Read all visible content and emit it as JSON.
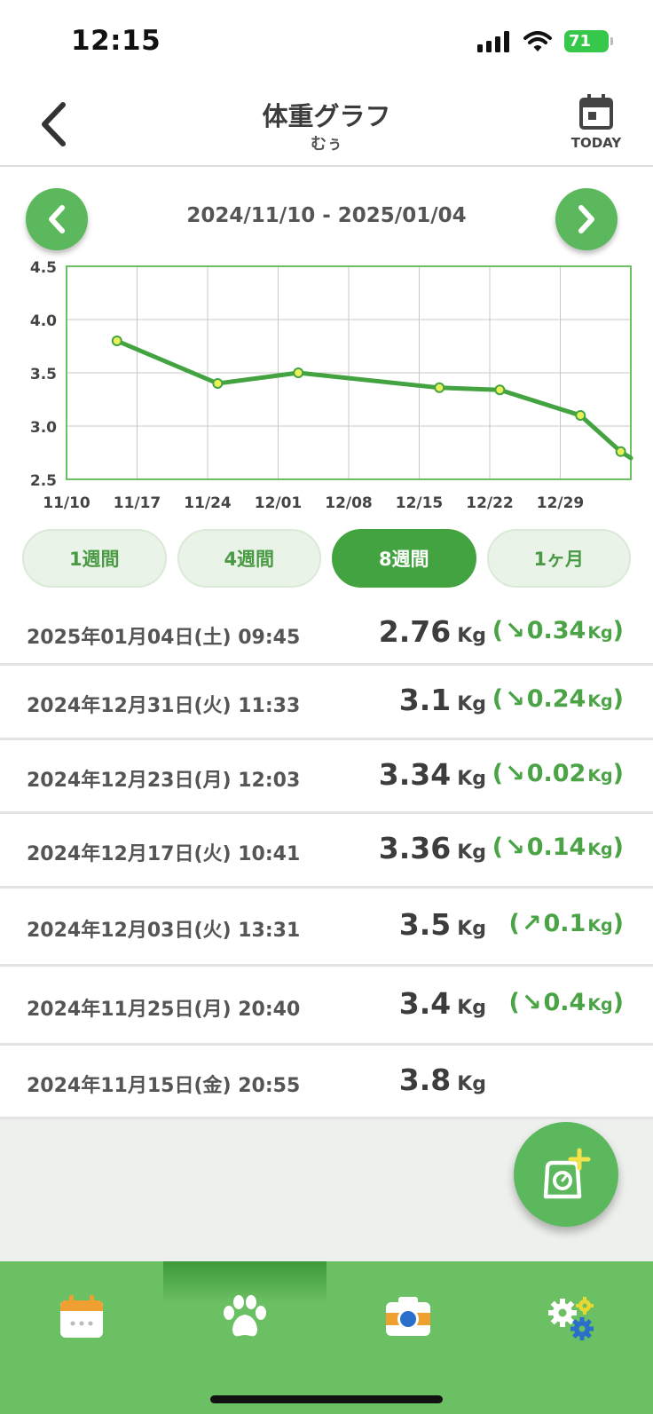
{
  "status_bar": {
    "time": "12:15",
    "battery": "71"
  },
  "header": {
    "title": "体重グラフ",
    "subtitle": "むぅ",
    "today_label": "TODAY"
  },
  "range": {
    "label": "2024/11/10 - 2025/01/04"
  },
  "chart_data": {
    "type": "line",
    "x": [
      "2024-11-15",
      "2024-11-25",
      "2024-12-03",
      "2024-12-17",
      "2024-12-23",
      "2024-12-31",
      "2025-01-04",
      "2025-01-05"
    ],
    "y": [
      3.8,
      3.4,
      3.5,
      3.36,
      3.34,
      3.1,
      2.76,
      2.7
    ],
    "xticks": [
      "11/10",
      "11/17",
      "11/24",
      "12/01",
      "12/08",
      "12/15",
      "12/22",
      "12/29"
    ],
    "yticks": [
      "4.5",
      "4.0",
      "3.5",
      "3.0",
      "2.5"
    ],
    "xlim": [
      "2024-11-10",
      "2025-01-05"
    ],
    "ylim": [
      2.5,
      4.5
    ],
    "grid": true,
    "line_color": "#43a340",
    "marker_fill": "#e8f05a"
  },
  "period_tabs": [
    {
      "label": "1週間",
      "active": false
    },
    {
      "label": "4週間",
      "active": false
    },
    {
      "label": "8週間",
      "active": true
    },
    {
      "label": "1ヶ月",
      "active": false
    }
  ],
  "records": [
    {
      "date": "2025年01月04日(土) 09:45",
      "weight": "2.76",
      "unit": "Kg",
      "diff_arrow": "↘",
      "diff": "0.34",
      "diff_unit": "Kg"
    },
    {
      "date": "2024年12月31日(火) 11:33",
      "weight": "3.1",
      "unit": "Kg",
      "diff_arrow": "↘",
      "diff": "0.24",
      "diff_unit": "Kg"
    },
    {
      "date": "2024年12月23日(月) 12:03",
      "weight": "3.34",
      "unit": "Kg",
      "diff_arrow": "↘",
      "diff": "0.02",
      "diff_unit": "Kg"
    },
    {
      "date": "2024年12月17日(火) 10:41",
      "weight": "3.36",
      "unit": "Kg",
      "diff_arrow": "↘",
      "diff": "0.14",
      "diff_unit": "Kg"
    },
    {
      "date": "2024年12月03日(火) 13:31",
      "weight": "3.5",
      "unit": "Kg",
      "diff_arrow": "↗",
      "diff": "0.1",
      "diff_unit": "Kg"
    },
    {
      "date": "2024年11月25日(月) 20:40",
      "weight": "3.4",
      "unit": "Kg",
      "diff_arrow": "↘",
      "diff": "0.4",
      "diff_unit": "Kg"
    },
    {
      "date": "2024年11月15日(金) 20:55",
      "weight": "3.8",
      "unit": "Kg",
      "diff_arrow": "",
      "diff": "",
      "diff_unit": ""
    }
  ],
  "fab": {
    "icon": "scale-add-icon"
  },
  "bottom_nav": [
    {
      "icon": "calendar-icon",
      "active": false
    },
    {
      "icon": "paw-icon",
      "active": true
    },
    {
      "icon": "camera-icon",
      "active": false
    },
    {
      "icon": "settings-gears-icon",
      "active": false
    }
  ],
  "colors": {
    "accent": "#5cb85c",
    "accent_dark": "#43a340",
    "nav_bg": "#6cc064",
    "diff_green": "#4aa345"
  }
}
